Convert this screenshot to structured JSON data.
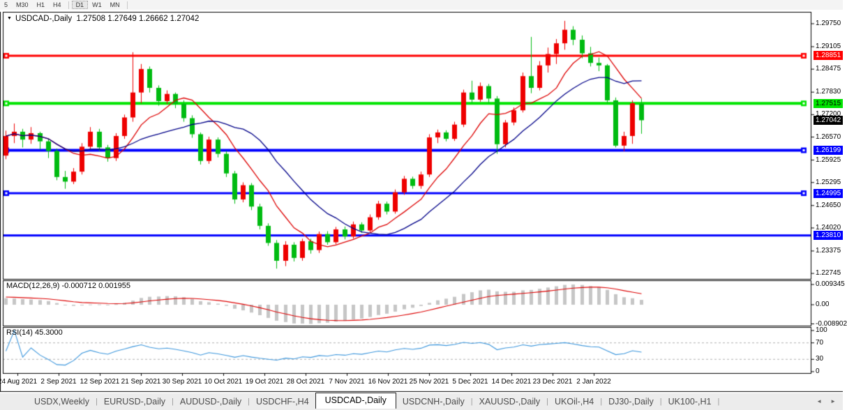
{
  "toolbar": {
    "timeframes": [
      "5",
      "M30",
      "H1",
      "H4",
      "D1",
      "W1",
      "MN"
    ],
    "active": "D1"
  },
  "chart_data": {
    "type": "candlestick",
    "symbol": "USDCAD-,Daily",
    "title_glyph": "▼",
    "ohlc_display": "1.27508 1.27649 1.26662 1.27042",
    "colors": {
      "bull": "#ee0000",
      "bear": "#00bb11",
      "ma_fast": "#dd0000",
      "ma_slow": "#000088",
      "macd_hist": "#c6c6c6",
      "macd_signal": "#dd0000",
      "rsi_line": "#3c96dc",
      "rsi_levels": "#b0b0b0"
    },
    "y_axis": {
      "ticks": [
        "1.29750",
        "1.29105",
        "1.28475",
        "1.27830",
        "1.27200",
        "1.26570",
        "1.25925",
        "1.25295",
        "1.24650",
        "1.24020",
        "1.23375",
        "1.22745"
      ],
      "badges": [
        {
          "text": "1.28851",
          "bg": "#ff0000",
          "fg": "#ffffff"
        },
        {
          "text": "1.27515",
          "bg": "#00e400",
          "fg": "#000000"
        },
        {
          "text": "1.27042",
          "bg": "#000000",
          "fg": "#ffffff"
        },
        {
          "text": "1.26199",
          "bg": "#0000ff",
          "fg": "#ffffff"
        },
        {
          "text": "1.24995",
          "bg": "#0000ff",
          "fg": "#ffffff"
        },
        {
          "text": "1.23810",
          "bg": "#0000ff",
          "fg": "#ffffff"
        }
      ]
    },
    "hlines": [
      {
        "price": 1.28851,
        "color": "#ff0000",
        "width": 3,
        "markers": true
      },
      {
        "price": 1.27515,
        "color": "#00e400",
        "width": 4,
        "markers": true
      },
      {
        "price": 1.26199,
        "color": "#0000ff",
        "width": 4,
        "markers": true
      },
      {
        "price": 1.24995,
        "color": "#0000ff",
        "width": 3,
        "markers": true
      },
      {
        "price": 1.2381,
        "color": "#0000ff",
        "width": 3,
        "markers": false
      }
    ],
    "x_labels": [
      "24 Aug 2021",
      "2 Sep 2021",
      "12 Sep 2021",
      "21 Sep 2021",
      "30 Sep 2021",
      "10 Oct 2021",
      "19 Oct 2021",
      "28 Oct 2021",
      "7 Nov 2021",
      "16 Nov 2021",
      "25 Nov 2021",
      "5 Dec 2021",
      "14 Dec 2021",
      "23 Dec 2021",
      "2 Jan 2022"
    ],
    "candles": [
      [
        1.2605,
        1.2675,
        1.2595,
        1.266
      ],
      [
        1.266,
        1.2695,
        1.264,
        1.2672
      ],
      [
        1.2672,
        1.268,
        1.2628,
        1.265
      ],
      [
        1.265,
        1.2685,
        1.2638,
        1.2668
      ],
      [
        1.2668,
        1.2672,
        1.2622,
        1.2645
      ],
      [
        1.2645,
        1.2652,
        1.2598,
        1.2618
      ],
      [
        1.2618,
        1.2625,
        1.2536,
        1.2545
      ],
      [
        1.2545,
        1.2562,
        1.2512,
        1.2532
      ],
      [
        1.2532,
        1.257,
        1.2525,
        1.256
      ],
      [
        1.256,
        1.264,
        1.2552,
        1.263
      ],
      [
        1.263,
        1.2685,
        1.2622,
        1.2672
      ],
      [
        1.2672,
        1.268,
        1.2618,
        1.2628
      ],
      [
        1.2628,
        1.2635,
        1.2588,
        1.2598
      ],
      [
        1.2598,
        1.2668,
        1.259,
        1.266
      ],
      [
        1.266,
        1.272,
        1.2652,
        1.2712
      ],
      [
        1.2712,
        1.2895,
        1.27,
        1.2782
      ],
      [
        1.2782,
        1.2862,
        1.2752,
        1.2848
      ],
      [
        1.2848,
        1.2855,
        1.2782,
        1.2795
      ],
      [
        1.2795,
        1.2802,
        1.2745,
        1.2758
      ],
      [
        1.2758,
        1.2788,
        1.275,
        1.2778
      ],
      [
        1.2778,
        1.2782,
        1.2738,
        1.275
      ],
      [
        1.275,
        1.276,
        1.27,
        1.271
      ],
      [
        1.271,
        1.2718,
        1.2655,
        1.2665
      ],
      [
        1.2665,
        1.267,
        1.258,
        1.259
      ],
      [
        1.259,
        1.2658,
        1.2582,
        1.265
      ],
      [
        1.265,
        1.2656,
        1.26,
        1.261
      ],
      [
        1.261,
        1.2618,
        1.2545,
        1.2555
      ],
      [
        1.2555,
        1.2562,
        1.247,
        1.2482
      ],
      [
        1.2482,
        1.253,
        1.2474,
        1.2522
      ],
      [
        1.2522,
        1.2528,
        1.2452,
        1.2462
      ],
      [
        1.2462,
        1.247,
        1.2398,
        1.2408
      ],
      [
        1.2408,
        1.2415,
        1.2352,
        1.236
      ],
      [
        1.236,
        1.2368,
        1.2288,
        1.231
      ],
      [
        1.231,
        1.2365,
        1.2295,
        1.2355
      ],
      [
        1.2355,
        1.2362,
        1.2308,
        1.2318
      ],
      [
        1.2318,
        1.2372,
        1.231,
        1.2365
      ],
      [
        1.2365,
        1.2372,
        1.233,
        1.234
      ],
      [
        1.234,
        1.2392,
        1.2332,
        1.2385
      ],
      [
        1.2385,
        1.2393,
        1.2355,
        1.2362
      ],
      [
        1.2362,
        1.2405,
        1.2356,
        1.2398
      ],
      [
        1.2398,
        1.2406,
        1.237,
        1.2378
      ],
      [
        1.2378,
        1.242,
        1.2372,
        1.2412
      ],
      [
        1.2412,
        1.2418,
        1.2388,
        1.2395
      ],
      [
        1.2395,
        1.244,
        1.239,
        1.2432
      ],
      [
        1.2432,
        1.2478,
        1.2425,
        1.247
      ],
      [
        1.247,
        1.2476,
        1.244,
        1.2448
      ],
      [
        1.2448,
        1.251,
        1.2442,
        1.2502
      ],
      [
        1.2502,
        1.2548,
        1.2495,
        1.254
      ],
      [
        1.254,
        1.2546,
        1.2512,
        1.252
      ],
      [
        1.252,
        1.256,
        1.2512,
        1.2552
      ],
      [
        1.2552,
        1.2665,
        1.2545,
        1.2656
      ],
      [
        1.2656,
        1.2678,
        1.264,
        1.267
      ],
      [
        1.267,
        1.2676,
        1.2645,
        1.2652
      ],
      [
        1.2652,
        1.27,
        1.2646,
        1.2692
      ],
      [
        1.2692,
        1.279,
        1.2685,
        1.2782
      ],
      [
        1.2782,
        1.2815,
        1.2752,
        1.2762
      ],
      [
        1.2762,
        1.281,
        1.2756,
        1.28
      ],
      [
        1.28,
        1.2806,
        1.2752,
        1.2765
      ],
      [
        1.2765,
        1.2772,
        1.261,
        1.2637
      ],
      [
        1.2637,
        1.2705,
        1.2628,
        1.2698
      ],
      [
        1.2698,
        1.274,
        1.269,
        1.2732
      ],
      [
        1.2732,
        1.2838,
        1.2726,
        1.2828
      ],
      [
        1.2828,
        1.2938,
        1.278,
        1.2795
      ],
      [
        1.2795,
        1.287,
        1.2788,
        1.2858
      ],
      [
        1.2858,
        1.2908,
        1.2838,
        1.289
      ],
      [
        1.289,
        1.2932,
        1.2862,
        1.292
      ],
      [
        1.292,
        1.2983,
        1.2902,
        1.2958
      ],
      [
        1.2958,
        1.2968,
        1.2915,
        1.293
      ],
      [
        1.293,
        1.2942,
        1.2878,
        1.2892
      ],
      [
        1.2892,
        1.291,
        1.2855,
        1.2865
      ],
      [
        1.2865,
        1.288,
        1.2842,
        1.2858
      ],
      [
        1.2858,
        1.2862,
        1.2752,
        1.276
      ],
      [
        1.276,
        1.2768,
        1.2628,
        1.2633
      ],
      [
        1.2633,
        1.2672,
        1.2617,
        1.266
      ],
      [
        1.266,
        1.276,
        1.2638,
        1.2752
      ],
      [
        1.27508,
        1.27649,
        1.26662,
        1.27042
      ]
    ],
    "ma_periods": {
      "fast": 8,
      "slow": 16
    },
    "macd": {
      "label": "MACD(12,26,9)",
      "values_text": "-0.000712 0.001955",
      "axis": [
        "0.009345",
        "0.00",
        "-0.008902"
      ],
      "params": [
        12,
        26,
        9
      ]
    },
    "rsi": {
      "label": "RSI(14)",
      "value_text": "45.3000",
      "axis": [
        "100",
        "70",
        "30",
        "0"
      ],
      "levels": [
        70,
        30
      ],
      "period": 14
    }
  },
  "tabs": {
    "items": [
      "USDX,Weekly",
      "EURUSD-,Daily",
      "AUDUSD-,Daily",
      "USDCHF-,H4",
      "USDCAD-,Daily",
      "USDCNH-,Daily",
      "XAUUSD-,Daily",
      "UKOil-,H4",
      "DJ30-,Daily",
      "UK100-,H1"
    ],
    "active_index": 4,
    "nav": {
      "left": "◄",
      "right": "►"
    }
  }
}
